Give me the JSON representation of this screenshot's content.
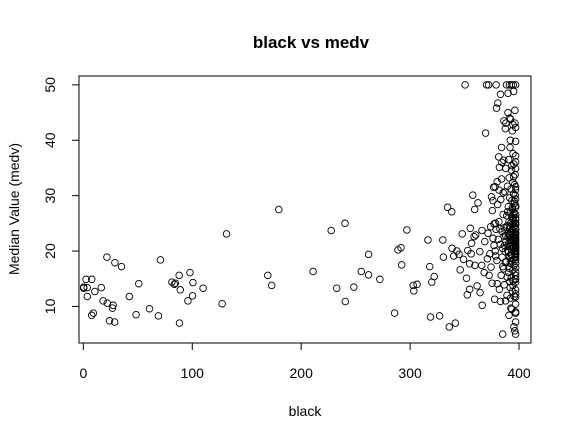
{
  "chart_data": {
    "type": "scatter",
    "title": "black vs medv",
    "xlabel": "black",
    "ylabel": "Median Value (medv)",
    "xlim": [
      -4,
      411
    ],
    "ylim": [
      3.4,
      51.6
    ],
    "xticks": [
      0,
      100,
      200,
      300,
      400
    ],
    "yticks": [
      10,
      20,
      30,
      40,
      50
    ],
    "grid": false,
    "legend": "none",
    "marker": "open-circle",
    "color": "#000000",
    "points": [
      [
        0.3,
        13.3
      ],
      [
        0.3,
        13.5
      ],
      [
        2.5,
        14.9
      ],
      [
        3.5,
        13.4
      ],
      [
        3.6,
        11.8
      ],
      [
        7.7,
        14.9
      ],
      [
        7.7,
        8.4
      ],
      [
        9.2,
        8.8
      ],
      [
        10.5,
        12.7
      ],
      [
        16.5,
        13.4
      ],
      [
        18.1,
        11.0
      ],
      [
        21.6,
        18.9
      ],
      [
        22.0,
        10.6
      ],
      [
        24.0,
        7.4
      ],
      [
        26.8,
        9.7
      ],
      [
        27.3,
        10.2
      ],
      [
        28.8,
        7.2
      ],
      [
        29.0,
        17.9
      ],
      [
        35.0,
        17.2
      ],
      [
        42.3,
        11.8
      ],
      [
        48.4,
        8.5
      ],
      [
        50.9,
        14.1
      ],
      [
        60.7,
        9.6
      ],
      [
        68.9,
        8.3
      ],
      [
        70.8,
        18.4
      ],
      [
        81.3,
        14.4
      ],
      [
        83.5,
        14.0
      ],
      [
        84.5,
        14.2
      ],
      [
        88.0,
        15.6
      ],
      [
        88.3,
        7.0
      ],
      [
        89.0,
        13.0
      ],
      [
        96.0,
        11.0
      ],
      [
        97.9,
        16.1
      ],
      [
        100.2,
        11.9
      ],
      [
        100.6,
        14.3
      ],
      [
        109.9,
        13.3
      ],
      [
        127.4,
        10.5
      ],
      [
        131.4,
        23.1
      ],
      [
        169.3,
        15.6
      ],
      [
        172.9,
        13.8
      ],
      [
        179.4,
        27.5
      ],
      [
        210.9,
        16.3
      ],
      [
        227.6,
        23.7
      ],
      [
        232.6,
        13.3
      ],
      [
        240.2,
        25.0
      ],
      [
        240.5,
        10.9
      ],
      [
        248.3,
        13.5
      ],
      [
        255.2,
        16.3
      ],
      [
        261.9,
        19.4
      ],
      [
        261.9,
        15.7
      ],
      [
        272.2,
        14.9
      ],
      [
        285.8,
        8.8
      ],
      [
        288.9,
        20.2
      ],
      [
        291.6,
        20.6
      ],
      [
        292.3,
        17.5
      ],
      [
        297.1,
        23.8
      ],
      [
        302.8,
        13.8
      ],
      [
        303.4,
        12.8
      ],
      [
        306.4,
        14.0
      ],
      [
        316.3,
        22.0
      ],
      [
        318.0,
        17.2
      ],
      [
        318.7,
        8.1
      ],
      [
        319.9,
        14.4
      ],
      [
        322.1,
        15.4
      ],
      [
        327.1,
        8.3
      ],
      [
        330.0,
        22.0
      ],
      [
        330.6,
        18.9
      ],
      [
        334.4,
        27.9
      ],
      [
        336.0,
        6.3
      ],
      [
        338.2,
        27.1
      ],
      [
        338.6,
        20.5
      ],
      [
        341.6,
        7.0
      ],
      [
        344.9,
        19.4
      ],
      [
        347.8,
        23.1
      ],
      [
        350.5,
        50.0
      ],
      [
        351.8,
        15.1
      ],
      [
        352.5,
        12.1
      ],
      [
        354.6,
        17.7
      ],
      [
        354.7,
        13.1
      ],
      [
        355.3,
        24.1
      ],
      [
        356.0,
        19.5
      ],
      [
        357.6,
        30.1
      ],
      [
        358.8,
        22.6
      ],
      [
        359.3,
        27.5
      ],
      [
        360.2,
        22.9
      ],
      [
        362.3,
        28.7
      ],
      [
        364.3,
        12.5
      ],
      [
        365.7,
        17.4
      ],
      [
        366.2,
        10.2
      ],
      [
        368.6,
        21.7
      ],
      [
        369.3,
        41.3
      ],
      [
        370.2,
        50.0
      ],
      [
        371.5,
        23.2
      ],
      [
        372.1,
        50.0
      ],
      [
        373.4,
        19.5
      ],
      [
        374.3,
        17.1
      ],
      [
        374.7,
        29.8
      ],
      [
        375.3,
        14.2
      ],
      [
        376.1,
        22.3
      ],
      [
        376.7,
        31.5
      ],
      [
        377.1,
        24.9
      ],
      [
        377.6,
        11.3
      ],
      [
        378.1,
        20.0
      ],
      [
        378.4,
        25.0
      ],
      [
        378.9,
        23.9
      ],
      [
        379.0,
        50.0
      ],
      [
        379.4,
        45.8
      ],
      [
        379.7,
        18.3
      ],
      [
        380.3,
        28.4
      ],
      [
        380.5,
        46.7
      ],
      [
        381.0,
        22.1
      ],
      [
        381.3,
        37.0
      ],
      [
        381.6,
        31.0
      ],
      [
        382.0,
        13.1
      ],
      [
        382.4,
        24.0
      ],
      [
        382.8,
        21.2
      ],
      [
        383.0,
        48.3
      ],
      [
        383.3,
        29.3
      ],
      [
        383.6,
        15.6
      ],
      [
        384.0,
        33.0
      ],
      [
        384.3,
        36.0
      ],
      [
        384.6,
        23.5
      ],
      [
        384.9,
        20.5
      ],
      [
        385.0,
        5.0
      ],
      [
        385.4,
        26.6
      ],
      [
        385.8,
        16.8
      ],
      [
        386.1,
        43.5
      ],
      [
        386.4,
        24.2
      ],
      [
        386.7,
        21.0
      ],
      [
        387.0,
        30.7
      ],
      [
        387.3,
        19.9
      ],
      [
        387.5,
        42.1
      ],
      [
        387.8,
        22.8
      ],
      [
        388.0,
        34.9
      ],
      [
        388.3,
        18.1
      ],
      [
        388.5,
        50.0
      ],
      [
        388.8,
        26.4
      ],
      [
        389.0,
        12.0
      ],
      [
        389.2,
        24.6
      ],
      [
        389.4,
        31.7
      ],
      [
        389.6,
        20.1
      ],
      [
        389.8,
        45.0
      ],
      [
        390.0,
        22.5
      ],
      [
        390.2,
        28.0
      ],
      [
        390.3,
        16.1
      ],
      [
        390.5,
        36.5
      ],
      [
        390.6,
        21.4
      ],
      [
        390.8,
        8.4
      ],
      [
        390.9,
        25.3
      ],
      [
        391.0,
        33.2
      ],
      [
        391.1,
        19.1
      ],
      [
        391.2,
        50.0
      ],
      [
        391.3,
        23.0
      ],
      [
        391.4,
        14.5
      ],
      [
        391.5,
        29.6
      ],
      [
        391.6,
        20.8
      ],
      [
        391.7,
        38.7
      ],
      [
        391.8,
        24.4
      ],
      [
        391.9,
        17.8
      ],
      [
        392.0,
        22.2
      ],
      [
        392.1,
        27.0
      ],
      [
        392.2,
        11.5
      ],
      [
        392.3,
        43.8
      ],
      [
        392.4,
        21.6
      ],
      [
        392.5,
        25.1
      ],
      [
        392.6,
        18.7
      ],
      [
        392.7,
        31.2
      ],
      [
        392.8,
        23.3
      ],
      [
        392.9,
        15.2
      ],
      [
        393.0,
        20.3
      ],
      [
        393.1,
        34.6
      ],
      [
        393.2,
        26.2
      ],
      [
        393.3,
        22.0
      ],
      [
        393.4,
        9.5
      ],
      [
        393.5,
        29.1
      ],
      [
        393.6,
        19.3
      ],
      [
        393.7,
        24.8
      ],
      [
        393.8,
        41.7
      ],
      [
        393.9,
        21.1
      ],
      [
        394.0,
        27.5
      ],
      [
        394.1,
        16.5
      ],
      [
        394.2,
        23.7
      ],
      [
        394.3,
        32.4
      ],
      [
        394.4,
        20.6
      ],
      [
        394.5,
        13.8
      ],
      [
        394.6,
        25.7
      ],
      [
        394.7,
        50.0
      ],
      [
        394.8,
        22.6
      ],
      [
        394.9,
        18.5
      ],
      [
        395.0,
        30.3
      ],
      [
        395.1,
        24.3
      ],
      [
        395.2,
        21.9
      ],
      [
        395.3,
        35.7
      ],
      [
        395.4,
        17.4
      ],
      [
        395.5,
        26.9
      ],
      [
        395.6,
        11.8
      ],
      [
        395.7,
        23.1
      ],
      [
        395.8,
        20.0
      ],
      [
        395.9,
        28.6
      ],
      [
        396.0,
        22.4
      ],
      [
        396.1,
        5.6
      ],
      [
        396.2,
        43.1
      ],
      [
        396.3,
        19.6
      ],
      [
        396.4,
        25.0
      ],
      [
        396.5,
        33.8
      ],
      [
        396.6,
        21.7
      ],
      [
        396.7,
        15.0
      ],
      [
        396.8,
        24.1
      ],
      [
        396.9,
        37.2
      ],
      [
        396.9,
        20.8
      ],
      [
        396.9,
        7.2
      ],
      [
        396.9,
        50.0
      ],
      [
        396.9,
        13.0
      ],
      [
        396.9,
        27.9
      ],
      [
        396.9,
        23.4
      ],
      [
        396.9,
        18.9
      ],
      [
        396.9,
        31.6
      ],
      [
        396.9,
        22.9
      ],
      [
        396.9,
        10.4
      ],
      [
        396.9,
        26.0
      ],
      [
        396.9,
        21.2
      ],
      [
        396.9,
        39.8
      ],
      [
        396.9,
        17.0
      ],
      [
        396.9,
        24.7
      ],
      [
        396.9,
        14.9
      ],
      [
        396.9,
        29.4
      ],
      [
        396.9,
        20.4
      ],
      [
        396.9,
        34.9
      ],
      [
        396.9,
        23.9
      ],
      [
        396.9,
        19.3
      ],
      [
        396.9,
        5.0
      ],
      [
        396.9,
        25.6
      ],
      [
        396.9,
        42.3
      ],
      [
        396.9,
        22.0
      ],
      [
        396.9,
        16.2
      ],
      [
        396.9,
        12.3
      ],
      [
        396.9,
        28.2
      ],
      [
        396.9,
        8.8
      ],
      [
        396.9,
        21.5
      ],
      [
        396.9,
        36.1
      ],
      [
        395.5,
        24.5
      ],
      [
        394.0,
        12.7
      ],
      [
        392.5,
        9.7
      ],
      [
        391.0,
        16.9
      ],
      [
        389.5,
        27.1
      ],
      [
        388.0,
        21.7
      ],
      [
        386.5,
        13.9
      ],
      [
        385.5,
        30.5
      ],
      [
        384.5,
        18.9
      ],
      [
        383.0,
        10.9
      ],
      [
        381.5,
        25.3
      ],
      [
        380.0,
        14.1
      ],
      [
        378.5,
        19.1
      ],
      [
        377.0,
        21.0
      ],
      [
        375.5,
        27.3
      ],
      [
        374.0,
        24.4
      ],
      [
        372.5,
        15.6
      ],
      [
        371.0,
        18.6
      ],
      [
        368.0,
        16.1
      ],
      [
        366.0,
        23.7
      ],
      [
        364.0,
        19.9
      ],
      [
        361.5,
        13.7
      ],
      [
        359.5,
        17.4
      ],
      [
        356.5,
        21.4
      ],
      [
        353.0,
        20.1
      ],
      [
        349.0,
        18.5
      ],
      [
        346.0,
        16.6
      ],
      [
        343.0,
        20.0
      ],
      [
        340.0,
        19.1
      ],
      [
        396.9,
        31.1
      ],
      [
        396.0,
        32.0
      ],
      [
        395.0,
        33.4
      ],
      [
        394.5,
        37.6
      ],
      [
        393.5,
        35.4
      ],
      [
        392.0,
        40.0
      ],
      [
        396.5,
        30.1
      ],
      [
        395.7,
        29.0
      ],
      [
        394.8,
        26.5
      ],
      [
        393.9,
        27.8
      ],
      [
        396.2,
        45.4
      ],
      [
        395.0,
        48.8
      ],
      [
        393.0,
        50.0
      ],
      [
        394.5,
        42.8
      ],
      [
        391.5,
        44.0
      ],
      [
        390.0,
        48.5
      ],
      [
        388.0,
        43.1
      ],
      [
        386.0,
        36.4
      ],
      [
        384.0,
        38.7
      ],
      [
        382.0,
        35.1
      ],
      [
        380.0,
        32.5
      ],
      [
        378.0,
        31.6
      ],
      [
        376.0,
        29.1
      ],
      [
        396.9,
        17.8
      ],
      [
        396.9,
        14.4
      ],
      [
        396.9,
        11.7
      ],
      [
        396.9,
        9.0
      ],
      [
        395.3,
        6.3
      ],
      [
        394.6,
        14.6
      ],
      [
        393.1,
        18.2
      ],
      [
        391.9,
        13.4
      ],
      [
        390.4,
        19.8
      ],
      [
        389.1,
        15.3
      ],
      [
        387.7,
        11.0
      ],
      [
        386.3,
        22.7
      ],
      [
        385.1,
        17.2
      ],
      [
        396.9,
        22.5
      ],
      [
        396.4,
        19.0
      ],
      [
        395.8,
        21.8
      ],
      [
        395.2,
        20.5
      ],
      [
        394.3,
        23.3
      ],
      [
        393.7,
        25.9
      ],
      [
        392.8,
        19.4
      ],
      [
        391.3,
        24.0
      ],
      [
        390.7,
        22.9
      ],
      [
        389.9,
        20.9
      ],
      [
        388.6,
        24.3
      ],
      [
        387.4,
        18.0
      ],
      [
        396.9,
        20.1
      ],
      [
        396.9,
        21.0
      ],
      [
        396.9,
        19.5
      ],
      [
        396.9,
        22.2
      ],
      [
        396.9,
        24.0
      ],
      [
        396.9,
        23.1
      ],
      [
        396.9,
        18.4
      ],
      [
        396.9,
        25.0
      ],
      [
        396.9,
        20.6
      ],
      [
        396.9,
        26.6
      ],
      [
        396.9,
        15.6
      ],
      [
        396.9,
        19.9
      ],
      [
        396.9,
        21.8
      ]
    ]
  }
}
